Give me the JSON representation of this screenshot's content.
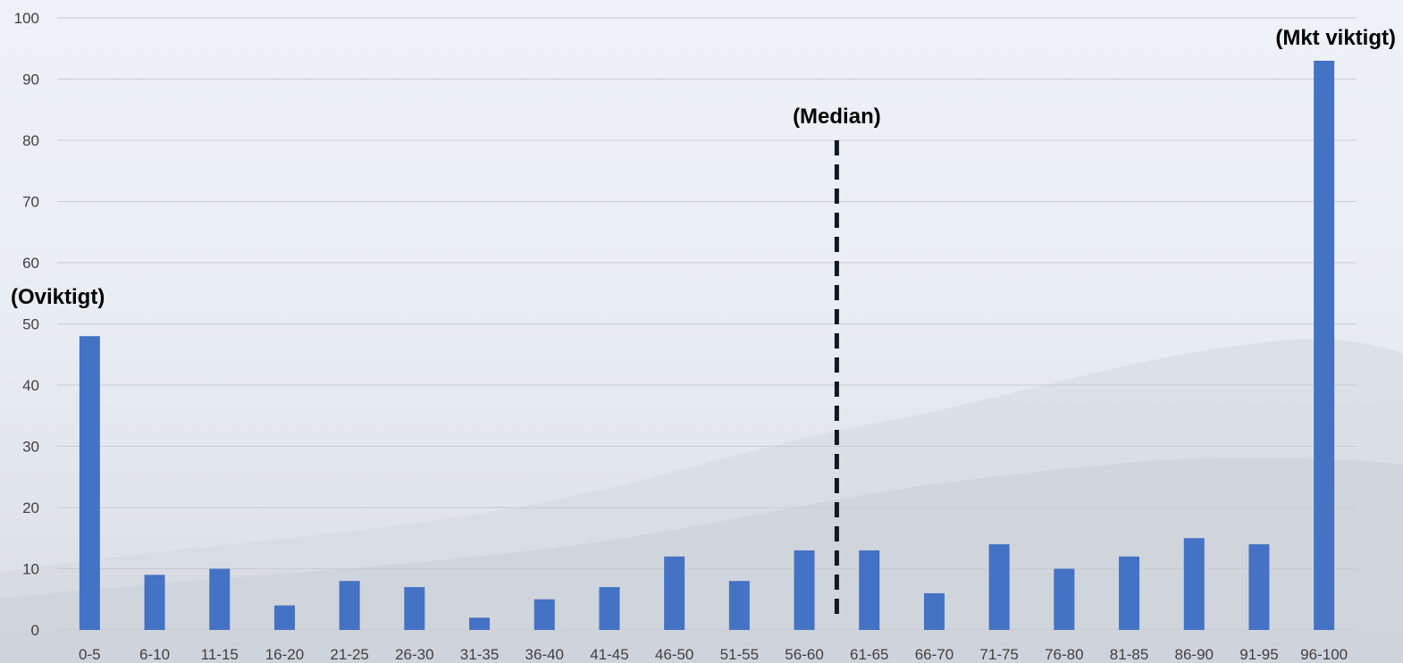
{
  "chart_data": {
    "type": "bar",
    "title": "",
    "xlabel": "",
    "ylabel": "",
    "categories": [
      "0-5",
      "6-10",
      "11-15",
      "16-20",
      "21-25",
      "26-30",
      "31-35",
      "36-40",
      "41-45",
      "46-50",
      "51-55",
      "56-60",
      "61-65",
      "66-70",
      "71-75",
      "76-80",
      "81-85",
      "86-90",
      "91-95",
      "96-100"
    ],
    "values": [
      48,
      9,
      10,
      4,
      8,
      7,
      2,
      5,
      7,
      12,
      8,
      13,
      13,
      6,
      14,
      10,
      12,
      15,
      14,
      93
    ],
    "ylim": [
      0,
      100
    ],
    "yticks": [
      0,
      10,
      20,
      30,
      40,
      50,
      60,
      70,
      80,
      90,
      100
    ],
    "grid": true,
    "bar_color": "#4472c4",
    "gridline_color": "#c9ccd0",
    "annotations": {
      "low_label": "(Oviktigt)",
      "high_label": "(Mkt viktigt)",
      "median_label": "(Median)"
    },
    "median_line": {
      "between_categories": [
        "56-60",
        "61-65"
      ],
      "y_top": 80,
      "style": "dashed",
      "color": "#111820"
    }
  }
}
